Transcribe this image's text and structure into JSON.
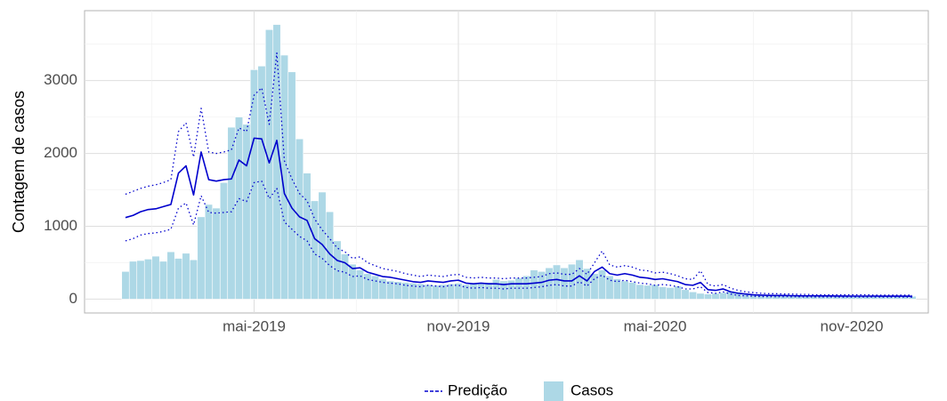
{
  "chart_data": {
    "type": "bar-line",
    "y_label": "Contagem de casos",
    "categories": [
      null,
      null,
      null,
      null,
      null,
      null,
      null,
      null,
      null,
      null,
      null,
      null,
      null,
      null,
      null,
      null,
      null,
      "mai-2019",
      null,
      null,
      null,
      null,
      null,
      null,
      null,
      null,
      null,
      null,
      null,
      null,
      null,
      null,
      null,
      null,
      null,
      null,
      null,
      null,
      null,
      null,
      null,
      null,
      null,
      null,
      "nov-2019",
      null,
      null,
      null,
      null,
      null,
      null,
      null,
      null,
      null,
      null,
      null,
      null,
      null,
      null,
      null,
      null,
      null,
      null,
      null,
      null,
      null,
      null,
      null,
      null,
      null,
      "mai-2020",
      null,
      null,
      null,
      null,
      null,
      null,
      null,
      null,
      null,
      null,
      null,
      null,
      null,
      null,
      null,
      null,
      null,
      null,
      null,
      null,
      null,
      null,
      null,
      null,
      null,
      "nov-2020",
      null,
      null,
      null,
      null,
      null,
      null,
      null,
      null
    ],
    "series": [
      {
        "name": "Casos",
        "color": "#add8e6",
        "values": [
          380,
          520,
          530,
          550,
          590,
          520,
          650,
          560,
          630,
          540,
          1130,
          1300,
          1250,
          1600,
          2360,
          2500,
          2400,
          3150,
          3200,
          3700,
          3770,
          3350,
          3120,
          2200,
          1730,
          1350,
          1470,
          1200,
          800,
          620,
          480,
          400,
          350,
          320,
          280,
          250,
          240,
          230,
          220,
          210,
          200,
          190,
          200,
          210,
          220,
          200,
          210,
          220,
          230,
          270,
          250,
          260,
          290,
          320,
          400,
          380,
          430,
          470,
          430,
          480,
          540,
          420,
          350,
          400,
          320,
          280,
          250,
          230,
          200,
          190,
          200,
          170,
          160,
          180,
          130,
          100,
          80,
          70,
          80,
          90,
          110,
          100,
          80,
          60,
          50,
          50,
          48,
          48,
          46,
          46,
          45,
          45,
          44,
          44,
          44,
          43,
          43,
          43,
          42,
          42,
          42,
          41,
          41,
          40,
          40
        ]
      },
      {
        "name": "Predição",
        "color": "#0000cd",
        "values": [
          1120,
          1150,
          1200,
          1230,
          1240,
          1270,
          1300,
          1730,
          1830,
          1430,
          2020,
          1640,
          1620,
          1640,
          1650,
          1910,
          1830,
          2210,
          2200,
          1870,
          2180,
          1450,
          1250,
          1130,
          1080,
          830,
          750,
          620,
          530,
          500,
          420,
          430,
          370,
          340,
          310,
          300,
          280,
          260,
          240,
          230,
          250,
          240,
          230,
          250,
          260,
          220,
          210,
          220,
          210,
          210,
          200,
          210,
          210,
          210,
          220,
          230,
          260,
          270,
          250,
          250,
          320,
          250,
          380,
          440,
          350,
          330,
          350,
          330,
          300,
          290,
          270,
          280,
          260,
          240,
          200,
          190,
          230,
          130,
          120,
          140,
          100,
          80,
          70,
          60,
          55,
          52,
          50,
          50,
          48,
          46,
          45,
          45,
          44,
          44,
          43,
          43,
          42,
          42,
          42,
          42,
          41,
          41,
          41,
          41,
          40
        ],
        "upper": [
          1440,
          1480,
          1520,
          1550,
          1570,
          1600,
          1640,
          2300,
          2420,
          1950,
          2620,
          2020,
          2000,
          2020,
          2050,
          2350,
          2300,
          2800,
          2900,
          2400,
          3380,
          1900,
          1650,
          1450,
          1350,
          1100,
          950,
          830,
          700,
          650,
          560,
          580,
          500,
          460,
          420,
          400,
          380,
          350,
          330,
          310,
          330,
          320,
          310,
          330,
          340,
          300,
          290,
          300,
          290,
          290,
          280,
          290,
          290,
          290,
          300,
          310,
          350,
          360,
          340,
          340,
          420,
          340,
          500,
          660,
          470,
          440,
          460,
          440,
          400,
          390,
          360,
          370,
          350,
          320,
          280,
          270,
          390,
          200,
          180,
          200,
          150,
          120,
          100,
          90,
          80,
          75,
          75,
          70,
          70,
          65,
          65,
          60,
          60,
          60,
          60,
          60,
          60,
          60,
          60,
          55,
          55,
          55,
          55,
          55,
          55
        ],
        "lower": [
          800,
          830,
          880,
          900,
          910,
          930,
          960,
          1250,
          1320,
          1020,
          1420,
          1190,
          1180,
          1190,
          1200,
          1380,
          1340,
          1600,
          1620,
          1380,
          1520,
          1060,
          960,
          860,
          800,
          620,
          560,
          460,
          390,
          370,
          310,
          320,
          270,
          250,
          230,
          220,
          210,
          190,
          180,
          170,
          190,
          180,
          170,
          190,
          190,
          160,
          150,
          160,
          150,
          150,
          140,
          150,
          150,
          150,
          160,
          170,
          190,
          200,
          180,
          180,
          240,
          180,
          280,
          330,
          260,
          240,
          260,
          240,
          220,
          210,
          190,
          200,
          190,
          170,
          140,
          140,
          170,
          90,
          80,
          100,
          70,
          50,
          45,
          40,
          35,
          34,
          33,
          33,
          32,
          31,
          30,
          30,
          30,
          30,
          29,
          29,
          29,
          29,
          29,
          29,
          28,
          28,
          28,
          28,
          27
        ]
      }
    ],
    "ylim": [
      -190,
      3960
    ],
    "yticks": [
      0,
      1000,
      2000,
      3000
    ],
    "grid": true
  }
}
